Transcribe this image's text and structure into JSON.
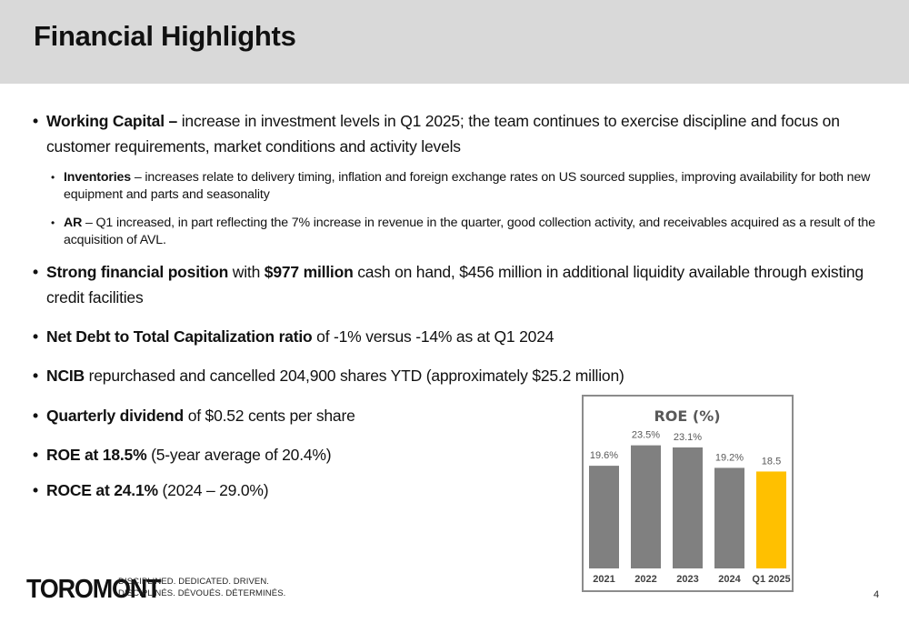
{
  "header": {
    "title": "Financial Highlights"
  },
  "bullets": {
    "working_capital": {
      "bold": "Working Capital –",
      "text": " increase in investment levels in Q1 2025; the team continues to exercise discipline and focus on customer requirements, market conditions and activity levels"
    },
    "inventories": {
      "bold": "Inventories",
      "text": " – increases relate to delivery timing, inflation and foreign exchange rates on US sourced supplies, improving availability for both new equipment and parts and seasonality"
    },
    "ar": {
      "bold": "AR",
      "text": " – Q1 increased, in part reflecting the 7% increase in revenue in the quarter, good collection activity, and receivables acquired as a result of the acquisition of AVL."
    },
    "financial_position": {
      "bold": "Strong financial position",
      "text_a": " with ",
      "bold_b": "$977 million",
      "text_b": " cash on hand, $456 million in additional liquidity available through existing credit facilities"
    },
    "net_debt": {
      "bold": "Net Debt to Total Capitalization ratio",
      "text": " of -1% versus -14% as at Q1 2024"
    },
    "ncib": {
      "bold": "NCIB",
      "text": " repurchased and cancelled 204,900 shares YTD (approximately $25.2 million)"
    },
    "dividend": {
      "bold": "Quarterly dividend",
      "text": " of $0.52 cents per share"
    },
    "roe": {
      "bold": "ROE at 18.5%",
      "text": " (5-year average of 20.4%)"
    },
    "roce": {
      "bold": "ROCE at 24.1%",
      "text": " (2024 – 29.0%)"
    },
    "bullet_glyph": "•"
  },
  "chart_data": {
    "type": "bar",
    "title": "ROE (%)",
    "categories": [
      "2021",
      "2022",
      "2023",
      "2024",
      "Q1 2025"
    ],
    "values": [
      19.6,
      23.5,
      23.1,
      19.2,
      18.5
    ],
    "data_labels": [
      "19.6%",
      "23.5%",
      "23.1%",
      "19.2%",
      "18.5"
    ],
    "colors": [
      "#808080",
      "#808080",
      "#808080",
      "#808080",
      "#ffc000"
    ],
    "ylim": [
      0,
      25
    ],
    "grid": false,
    "legend": "none"
  },
  "footer": {
    "logo": "TOROMONT",
    "tagline_en": "DISCIPLINED. DEDICATED. DRIVEN.",
    "tagline_fr": "DISCIPLINÉS. DÉVOUÉS. DÉTERMINÉS.",
    "page_number": "4"
  }
}
